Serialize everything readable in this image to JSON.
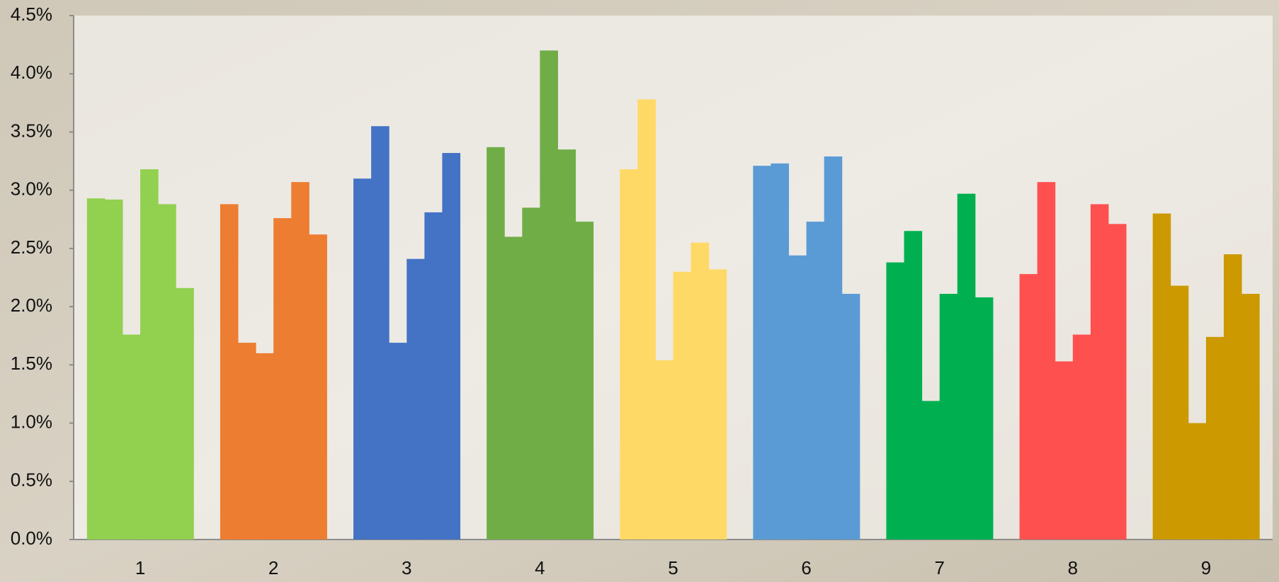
{
  "chart_data": {
    "type": "grouped-bar",
    "categories": [
      "1",
      "2",
      "3",
      "4",
      "5",
      "6",
      "7",
      "8",
      "9"
    ],
    "colors": [
      "#92d050",
      "#ed7d31",
      "#4472c4",
      "#70ad47",
      "#ffd966",
      "#5b9bd5",
      "#00b050",
      "#ff5050",
      "#cc9900"
    ],
    "values": [
      [
        2.93,
        2.92,
        1.76,
        3.18,
        2.88,
        2.16
      ],
      [
        2.88,
        1.69,
        1.6,
        2.76,
        3.07,
        2.62
      ],
      [
        3.1,
        3.55,
        1.69,
        2.41,
        2.81,
        3.32
      ],
      [
        3.37,
        2.6,
        2.85,
        4.2,
        3.35,
        2.73
      ],
      [
        3.18,
        3.78,
        1.54,
        2.3,
        2.55,
        2.32
      ],
      [
        3.21,
        3.23,
        2.44,
        2.73,
        3.29,
        2.11
      ],
      [
        2.38,
        2.65,
        1.19,
        2.11,
        2.97,
        2.08
      ],
      [
        2.28,
        3.07,
        1.53,
        1.76,
        2.88,
        2.71
      ],
      [
        2.8,
        2.18,
        1.0,
        1.74,
        2.45,
        2.11
      ]
    ],
    "ylim": [
      0,
      4.5
    ],
    "yticks": [
      {
        "value": 0,
        "label": "0.0%"
      },
      {
        "value": 0.5,
        "label": "0.5%"
      },
      {
        "value": 1,
        "label": "1.0%"
      },
      {
        "value": 1.5,
        "label": "1.5%"
      },
      {
        "value": 2,
        "label": "2.0%"
      },
      {
        "value": 2.5,
        "label": "2.5%"
      },
      {
        "value": 3,
        "label": "3.0%"
      },
      {
        "value": 3.5,
        "label": "3.5%"
      },
      {
        "value": 4,
        "label": "4.0%"
      },
      {
        "value": 4.5,
        "label": "4.5%"
      }
    ],
    "grid": false
  }
}
